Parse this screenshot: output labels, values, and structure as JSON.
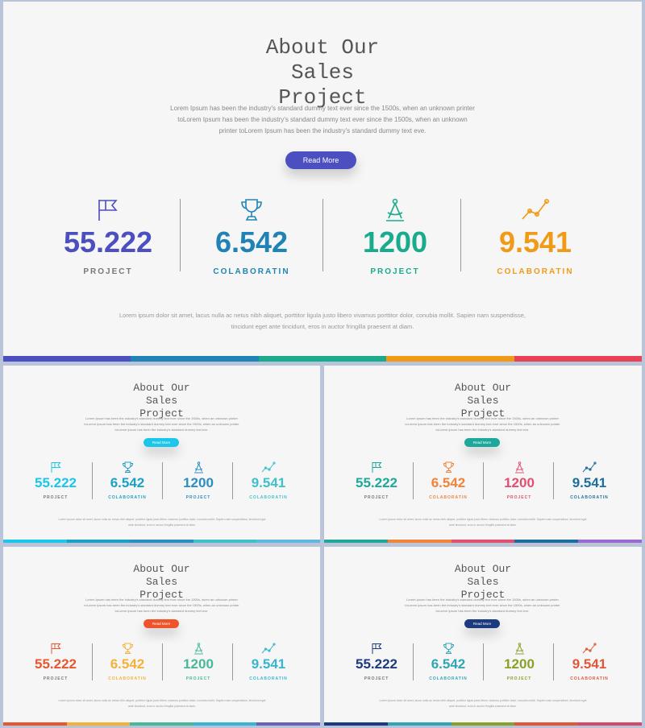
{
  "title": "About Our\nSales\nProject",
  "body": "Lorem Ipsum has been the industry's standard dummy text ever since the 1500s, when an unknown printer toLorem Ipsum has been the industry's standard dummy text ever since the 1500s, when an unknown printer toLorem Ipsum has been the industry's standard dummy text eve.",
  "button_label": "Read More",
  "footer": "Lorem ipsum dolor sit amet, lacus nulla ac netus nibh aliquet, porttitor ligula justo libero vivamus porttitor dolor, conubia mollit. Sapien nam suspendisse, tincidunt eget ante tincidunt, eros in auctor fringilla praesent at diam.",
  "stats": [
    {
      "value": "55.222",
      "label": "PROJECT",
      "icon": "flag-icon"
    },
    {
      "value": "6.542",
      "label": "COLABORATIN",
      "icon": "trophy-icon"
    },
    {
      "value": "1200",
      "label": "PROJECT",
      "icon": "compass-icon"
    },
    {
      "value": "9.541",
      "label": "COLABORATIN",
      "icon": "line-chart-icon"
    }
  ],
  "slides": [
    {
      "id": "main",
      "button_color": "#4b4fbf",
      "stat_colors": [
        "#4b4fbf",
        "#1f84b5",
        "#18ab8c",
        "#f09a17"
      ],
      "bar_colors": [
        "#4b4fbf",
        "#1f84b5",
        "#18ab8c",
        "#f09a17",
        "#e94256"
      ]
    },
    {
      "id": "cyan",
      "button_color": "#1cc6ea",
      "stat_colors": [
        "#1cc6ea",
        "#1ba1c6",
        "#2c8ec0",
        "#3fc1c9"
      ],
      "bar_colors": [
        "#1cc6ea",
        "#1ba1c6",
        "#2c8ec0",
        "#3fc1c9",
        "#5fb7e0"
      ]
    },
    {
      "id": "teal",
      "button_color": "#1ea89a",
      "stat_colors": [
        "#1ea89a",
        "#f0843a",
        "#e2506f",
        "#1d6e9c"
      ],
      "bar_colors": [
        "#1ea89a",
        "#f0843a",
        "#e2506f",
        "#1d6e9c",
        "#9b6ad0"
      ]
    },
    {
      "id": "orange",
      "button_color": "#f0532a",
      "stat_colors": [
        "#e8562e",
        "#f3b13a",
        "#48b79a",
        "#38b6cf"
      ],
      "bar_colors": [
        "#e8562e",
        "#f3b13a",
        "#48b79a",
        "#38b6cf",
        "#6d63b5"
      ]
    },
    {
      "id": "navy",
      "button_color": "#1c3a7e",
      "stat_colors": [
        "#1c3a7e",
        "#31a5b5",
        "#8aa02c",
        "#e2563a"
      ],
      "bar_colors": [
        "#1c3a7e",
        "#31a5b5",
        "#8aa02c",
        "#e2563a",
        "#d34a6a"
      ]
    }
  ]
}
